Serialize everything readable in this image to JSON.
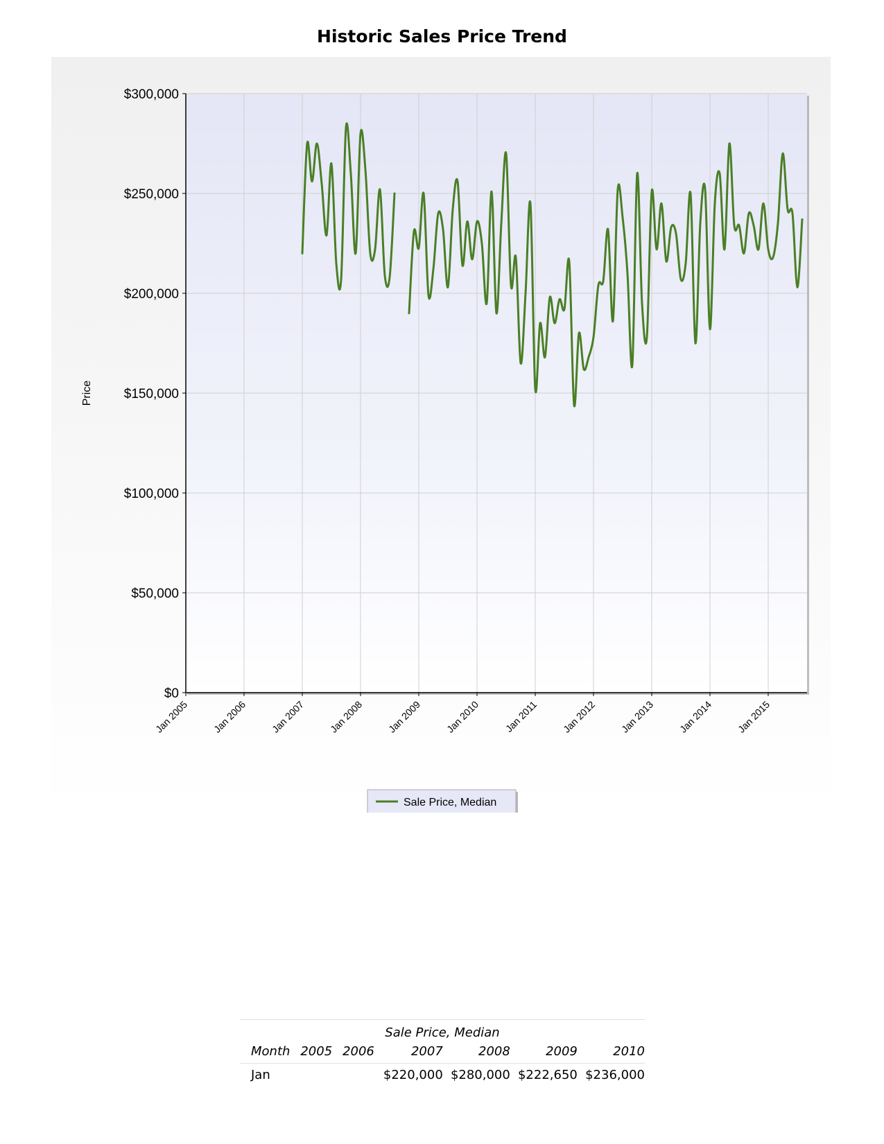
{
  "chart_data": {
    "type": "line",
    "title": "Historic Sales Price Trend",
    "ylabel": "Price",
    "xlabel": "",
    "ylim": [
      0,
      300000
    ],
    "yticks": [
      0,
      50000,
      100000,
      150000,
      200000,
      250000,
      300000
    ],
    "ytick_labels": [
      "$0",
      "$50,000",
      "$100,000",
      "$150,000",
      "$200,000",
      "$250,000",
      "$300,000"
    ],
    "xlim": [
      "2005-01",
      "2015-09"
    ],
    "xtick_labels": [
      "Jan 2005",
      "Jan 2006",
      "Jan 2007",
      "Jan 2008",
      "Jan 2009",
      "Jan 2010",
      "Jan 2011",
      "Jan 2012",
      "Jan 2013",
      "Jan 2014",
      "Jan 2015"
    ],
    "grid": true,
    "legend_position": "bottom-center",
    "series": [
      {
        "name": "Sale Price, Median",
        "color": "#4a7f25",
        "points": [
          [
            "2007-01",
            220000
          ],
          [
            "2007-02",
            275000
          ],
          [
            "2007-03",
            256000
          ],
          [
            "2007-04",
            275000
          ],
          [
            "2007-05",
            255000
          ],
          [
            "2007-06",
            229000
          ],
          [
            "2007-07",
            265000
          ],
          [
            "2007-08",
            215000
          ],
          [
            "2007-09",
            207000
          ],
          [
            "2007-10",
            283000
          ],
          [
            "2007-11",
            260000
          ],
          [
            "2007-12",
            220000
          ],
          [
            "2008-01",
            280000
          ],
          [
            "2008-02",
            262000
          ],
          [
            "2008-03",
            220000
          ],
          [
            "2008-04",
            222000
          ],
          [
            "2008-05",
            252000
          ],
          [
            "2008-06",
            209000
          ],
          [
            "2008-07",
            208000
          ],
          [
            "2008-08",
            250000
          ],
          null,
          null,
          [
            "2008-11",
            190000
          ],
          [
            "2008-12",
            231000
          ],
          [
            "2009-01",
            222650
          ],
          [
            "2009-02",
            250000
          ],
          [
            "2009-03",
            199000
          ],
          [
            "2009-04",
            212000
          ],
          [
            "2009-05",
            240000
          ],
          [
            "2009-06",
            232000
          ],
          [
            "2009-07",
            203000
          ],
          [
            "2009-08",
            242000
          ],
          [
            "2009-09",
            256000
          ],
          [
            "2009-10",
            214000
          ],
          [
            "2009-11",
            236000
          ],
          [
            "2009-12",
            217000
          ],
          [
            "2010-01",
            236000
          ],
          [
            "2010-02",
            225000
          ],
          [
            "2010-03",
            195000
          ],
          [
            "2010-04",
            251000
          ],
          [
            "2010-05",
            190000
          ],
          [
            "2010-06",
            235000
          ],
          [
            "2010-07",
            270000
          ],
          [
            "2010-08",
            204000
          ],
          [
            "2010-09",
            218000
          ],
          [
            "2010-10",
            165000
          ],
          [
            "2010-11",
            200000
          ],
          [
            "2010-12",
            245000
          ],
          [
            "2011-01",
            152000
          ],
          [
            "2011-02",
            185000
          ],
          [
            "2011-03",
            168000
          ],
          [
            "2011-04",
            198000
          ],
          [
            "2011-05",
            185000
          ],
          [
            "2011-06",
            197000
          ],
          [
            "2011-07",
            192000
          ],
          [
            "2011-08",
            216000
          ],
          [
            "2011-09",
            144000
          ],
          [
            "2011-10",
            180000
          ],
          [
            "2011-11",
            162000
          ],
          [
            "2011-12",
            168000
          ],
          [
            "2012-01",
            178000
          ],
          [
            "2012-02",
            204000
          ],
          [
            "2012-03",
            206000
          ],
          [
            "2012-04",
            232000
          ],
          [
            "2012-05",
            186000
          ],
          [
            "2012-06",
            252000
          ],
          [
            "2012-07",
            238000
          ],
          [
            "2012-08",
            210000
          ],
          [
            "2012-09",
            164000
          ],
          [
            "2012-10",
            260000
          ],
          [
            "2012-11",
            195000
          ],
          [
            "2012-12",
            178000
          ],
          [
            "2013-01",
            251000
          ],
          [
            "2013-02",
            222000
          ],
          [
            "2013-03",
            245000
          ],
          [
            "2013-04",
            216000
          ],
          [
            "2013-05",
            233000
          ],
          [
            "2013-06",
            230000
          ],
          [
            "2013-07",
            207000
          ],
          [
            "2013-08",
            215000
          ],
          [
            "2013-09",
            250000
          ],
          [
            "2013-10",
            175000
          ],
          [
            "2013-11",
            235000
          ],
          [
            "2013-12",
            252000
          ],
          [
            "2014-01",
            182000
          ],
          [
            "2014-02",
            245000
          ],
          [
            "2014-03",
            260000
          ],
          [
            "2014-04",
            222000
          ],
          [
            "2014-05",
            275000
          ],
          [
            "2014-06",
            234000
          ],
          [
            "2014-07",
            234000
          ],
          [
            "2014-08",
            220000
          ],
          [
            "2014-09",
            240000
          ],
          [
            "2014-10",
            234000
          ],
          [
            "2014-11",
            222000
          ],
          [
            "2014-12",
            245000
          ],
          [
            "2015-01",
            222000
          ],
          [
            "2015-02",
            218000
          ],
          [
            "2015-03",
            235000
          ],
          [
            "2015-04",
            270000
          ],
          [
            "2015-05",
            242000
          ],
          [
            "2015-06",
            240000
          ],
          [
            "2015-07",
            203000
          ],
          [
            "2015-08",
            237000
          ]
        ]
      }
    ]
  },
  "table": {
    "group_label": "Sale Price, Median",
    "columns": [
      "Month",
      "2005",
      "2006",
      "2007",
      "2008",
      "2009",
      "2010"
    ],
    "rows": [
      [
        "Jan",
        "",
        "",
        "$220,000",
        "$280,000",
        "$222,650",
        "$236,000"
      ]
    ]
  }
}
